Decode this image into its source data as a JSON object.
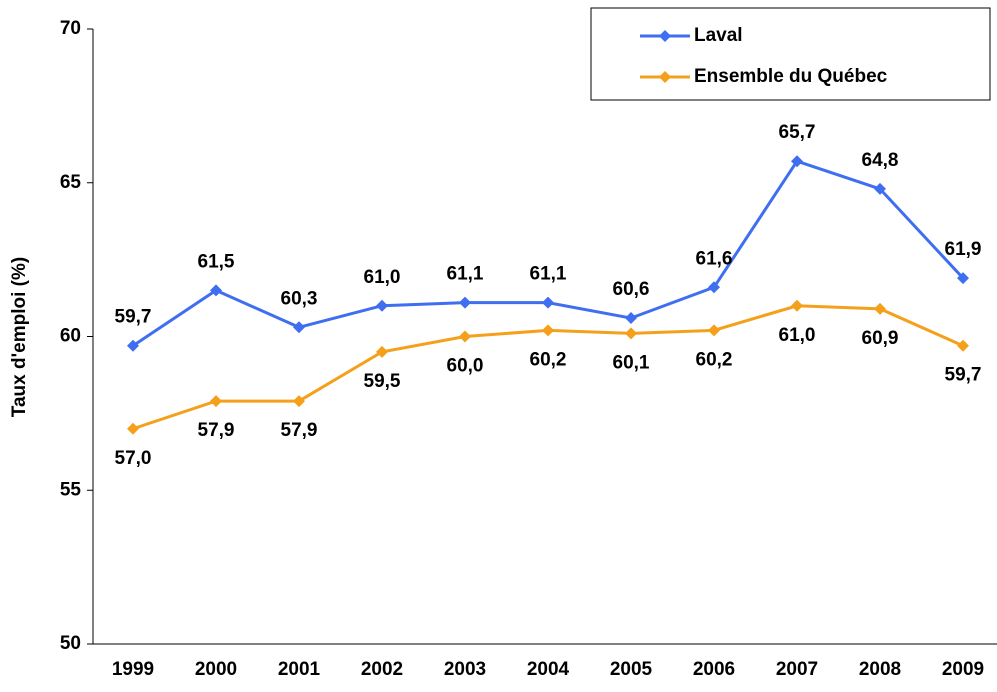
{
  "chart_data": {
    "type": "line",
    "ylabel": "Taux d'emploi (%)",
    "categories": [
      "1999",
      "2000",
      "2001",
      "2002",
      "2003",
      "2004",
      "2005",
      "2006",
      "2007",
      "2008",
      "2009"
    ],
    "series": [
      {
        "name": "Laval",
        "color": "#3f6ff0",
        "values": [
          59.7,
          61.5,
          60.3,
          61.0,
          61.1,
          61.1,
          60.6,
          61.6,
          65.7,
          64.8,
          61.9
        ],
        "value_labels": [
          "59,7",
          "61,5",
          "60,3",
          "61,0",
          "61,1",
          "61,1",
          "60,6",
          "61,6",
          "65,7",
          "64,8",
          "61,9"
        ]
      },
      {
        "name": "Ensemble du Québec",
        "color": "#f5a01a",
        "values": [
          57.0,
          57.9,
          57.9,
          59.5,
          60.0,
          60.2,
          60.1,
          60.2,
          61.0,
          60.9,
          59.7
        ],
        "value_labels": [
          "57,0",
          "57,9",
          "57,9",
          "59,5",
          "60,0",
          "60,2",
          "60,1",
          "60,2",
          "61,0",
          "60,9",
          "59,7"
        ]
      }
    ],
    "ylim": [
      50,
      70
    ],
    "yticks": [
      50,
      55,
      60,
      65,
      70
    ],
    "grid": false,
    "legend": "top-right"
  }
}
